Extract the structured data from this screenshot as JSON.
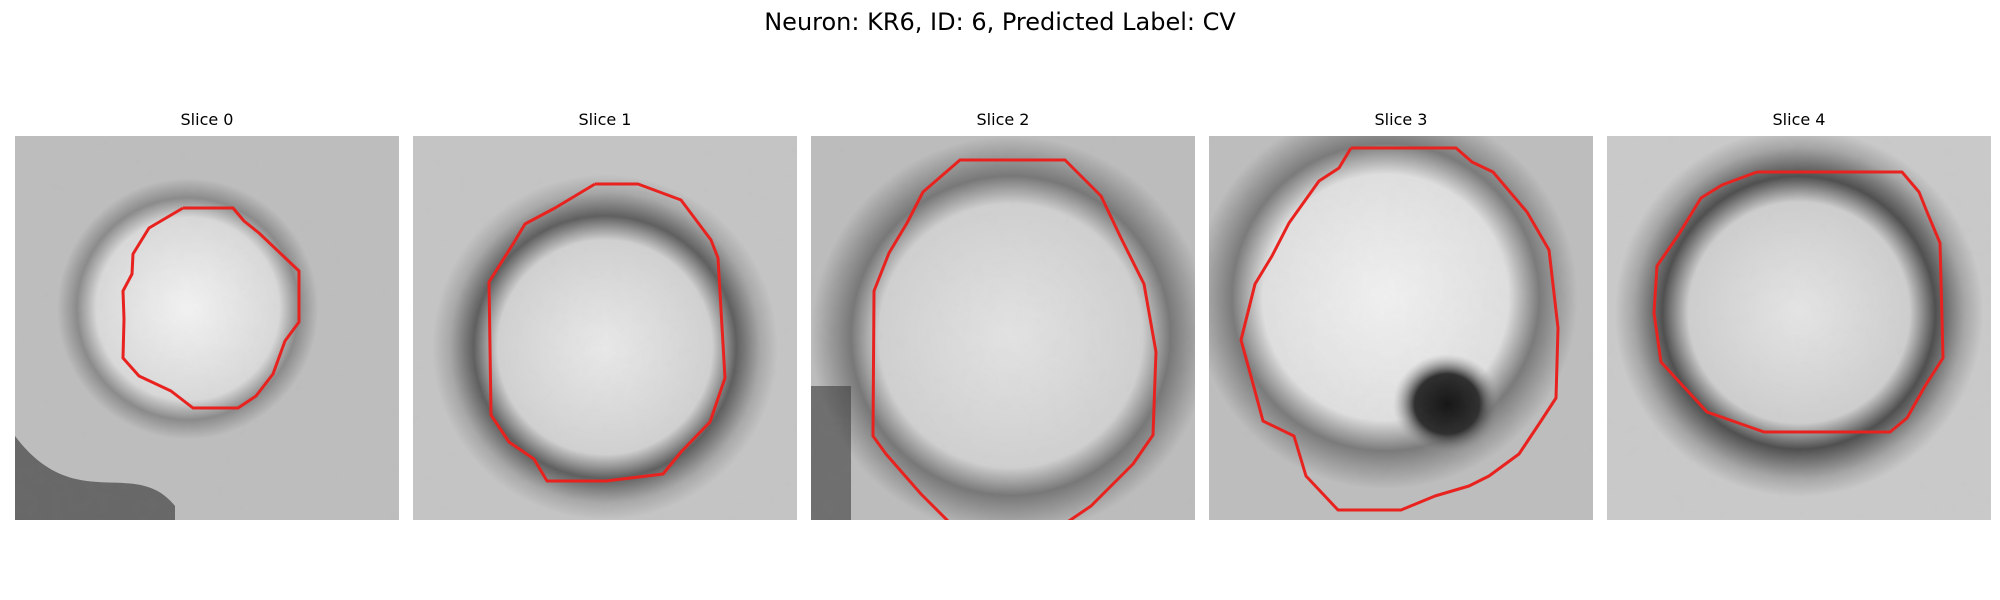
{
  "figure": {
    "title": "Neuron: KR6, ID: 6, Predicted Label: CV"
  },
  "contour_color": "#e8231f",
  "panels": [
    {
      "title": "Slice 0"
    },
    {
      "title": "Slice 1"
    },
    {
      "title": "Slice 2"
    },
    {
      "title": "Slice 3"
    },
    {
      "title": "Slice 4"
    }
  ]
}
